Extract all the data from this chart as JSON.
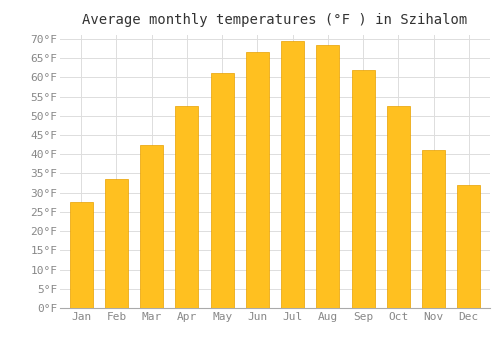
{
  "title": "Average monthly temperatures (°F ) in Szihalom",
  "months": [
    "Jan",
    "Feb",
    "Mar",
    "Apr",
    "May",
    "Jun",
    "Jul",
    "Aug",
    "Sep",
    "Oct",
    "Nov",
    "Dec"
  ],
  "values": [
    27.5,
    33.5,
    42.5,
    52.5,
    61.0,
    66.5,
    69.5,
    68.5,
    62.0,
    52.5,
    41.0,
    32.0
  ],
  "bar_color_top": "#FFC020",
  "bar_color_bottom": "#FFB000",
  "bar_edge_color": "#E8A000",
  "background_color": "#ffffff",
  "grid_color": "#dddddd",
  "ytick_min": 0,
  "ytick_max": 70,
  "ytick_step": 5,
  "title_fontsize": 10,
  "tick_fontsize": 8,
  "tick_color": "#888888",
  "title_color": "#333333"
}
